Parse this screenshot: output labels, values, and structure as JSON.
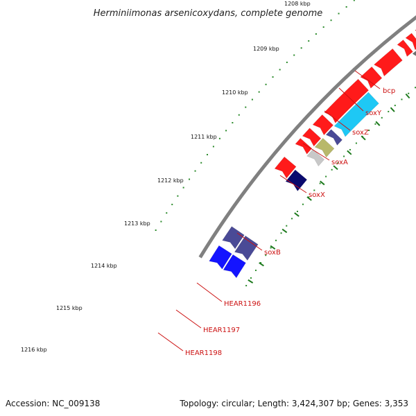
{
  "title": "Herminiimonas arsenicoxydans, complete genome",
  "footer": {
    "accession": "Accession: NC_009138",
    "summary": "Topology: circular; Length: 3,424,307 bp; Genes: 3,353"
  },
  "ticks": [
    "1208 kbp",
    "1209 kbp",
    "1210 kbp",
    "1211 kbp",
    "1212 kbp",
    "1213 kbp",
    "1214 kbp",
    "1215 kbp",
    "1216 kbp"
  ],
  "genes": [
    {
      "label": "bcp"
    },
    {
      "label": "soxY"
    },
    {
      "label": "soxZ"
    },
    {
      "label": "soxA"
    },
    {
      "label": "soxX"
    },
    {
      "label": "soxB"
    },
    {
      "label": "HEAR1196"
    },
    {
      "label": "HEAR1197"
    },
    {
      "label": "HEAR1198"
    }
  ],
  "colors": {
    "backbone": "#808080",
    "cds_red": "#ff1a1a",
    "cyan": "#1ee8ee",
    "sky": "#1ec8f5",
    "gray_gene": "#6e6e6e",
    "slate": "#4a4a96",
    "olive": "#b8b86a",
    "light_gray": "#c8c8c8",
    "navy": "#0a0a6e",
    "blue": "#1414ff",
    "dot_green": "#2a8a2a",
    "tick_green": "#1e7a1e",
    "label_red": "#cc1111"
  }
}
